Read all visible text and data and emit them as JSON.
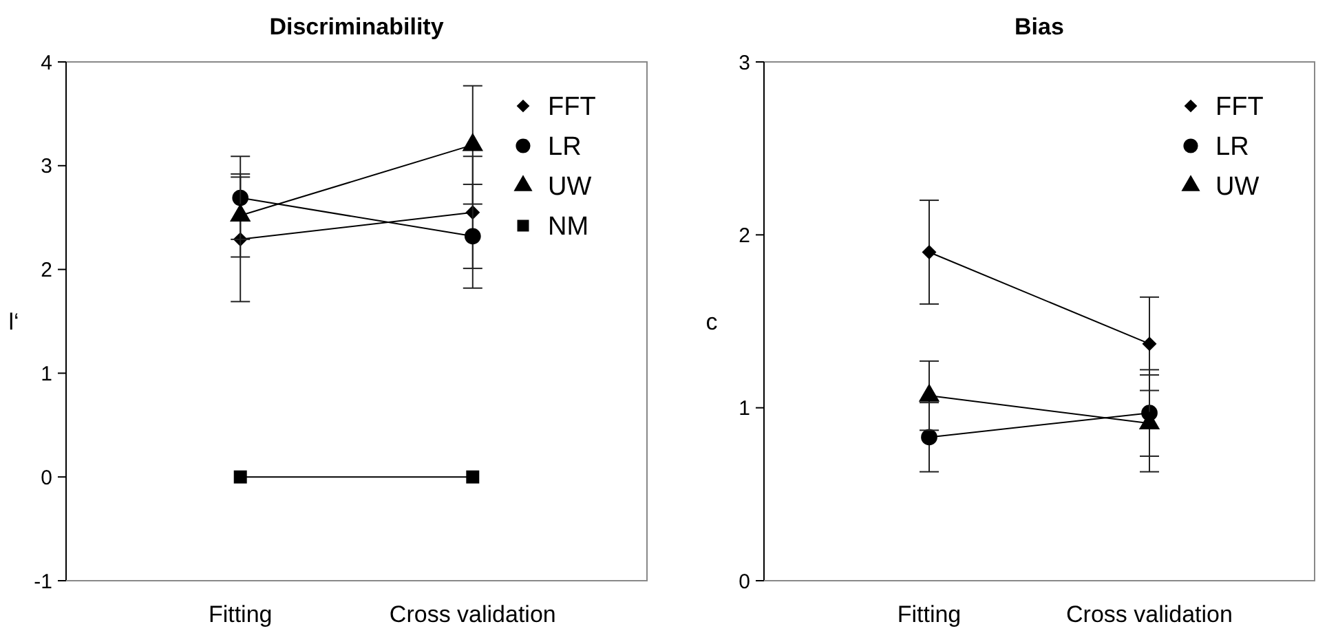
{
  "chart_data": [
    {
      "type": "line",
      "title": "Discriminability",
      "ylabel": "l‘",
      "categories": [
        "Fitting",
        "Cross validation"
      ],
      "ylim": [
        -1,
        4
      ],
      "yticks": [
        -1,
        0,
        1,
        2,
        3,
        4
      ],
      "legend": "top right",
      "grid": false,
      "series": [
        {
          "name": "FFT",
          "color": "#000000",
          "marker": "diamond",
          "values": [
            2.29,
            2.55
          ],
          "errors": [
            0.6,
            0.54
          ]
        },
        {
          "name": "LR",
          "color": "#000000",
          "marker": "circle",
          "values": [
            2.69,
            2.32
          ],
          "errors": [
            0.4,
            0.5
          ]
        },
        {
          "name": "UW",
          "color": "#000000",
          "marker": "triangle",
          "values": [
            2.52,
            3.2
          ],
          "errors": [
            0.4,
            0.57
          ]
        },
        {
          "name": "NM",
          "color": "#000000",
          "marker": "square",
          "values": [
            0,
            0
          ]
        }
      ]
    },
    {
      "type": "line",
      "title": "Bias",
      "ylabel": "c",
      "categories": [
        "Fitting",
        "Cross validation"
      ],
      "ylim": [
        0,
        3
      ],
      "yticks": [
        0,
        1,
        2,
        3
      ],
      "legend": "top right",
      "grid": false,
      "series": [
        {
          "name": "FFT",
          "color": "#000000",
          "marker": "diamond",
          "values": [
            1.9,
            1.37
          ],
          "errors": [
            0.3,
            0.27
          ]
        },
        {
          "name": "LR",
          "color": "#000000",
          "marker": "circle",
          "values": [
            0.83,
            0.97
          ],
          "errors": [
            0.2,
            0.25
          ]
        },
        {
          "name": "UW",
          "color": "#000000",
          "marker": "triangle",
          "values": [
            1.07,
            0.91
          ],
          "errors": [
            0.2,
            0.28
          ]
        }
      ]
    }
  ]
}
